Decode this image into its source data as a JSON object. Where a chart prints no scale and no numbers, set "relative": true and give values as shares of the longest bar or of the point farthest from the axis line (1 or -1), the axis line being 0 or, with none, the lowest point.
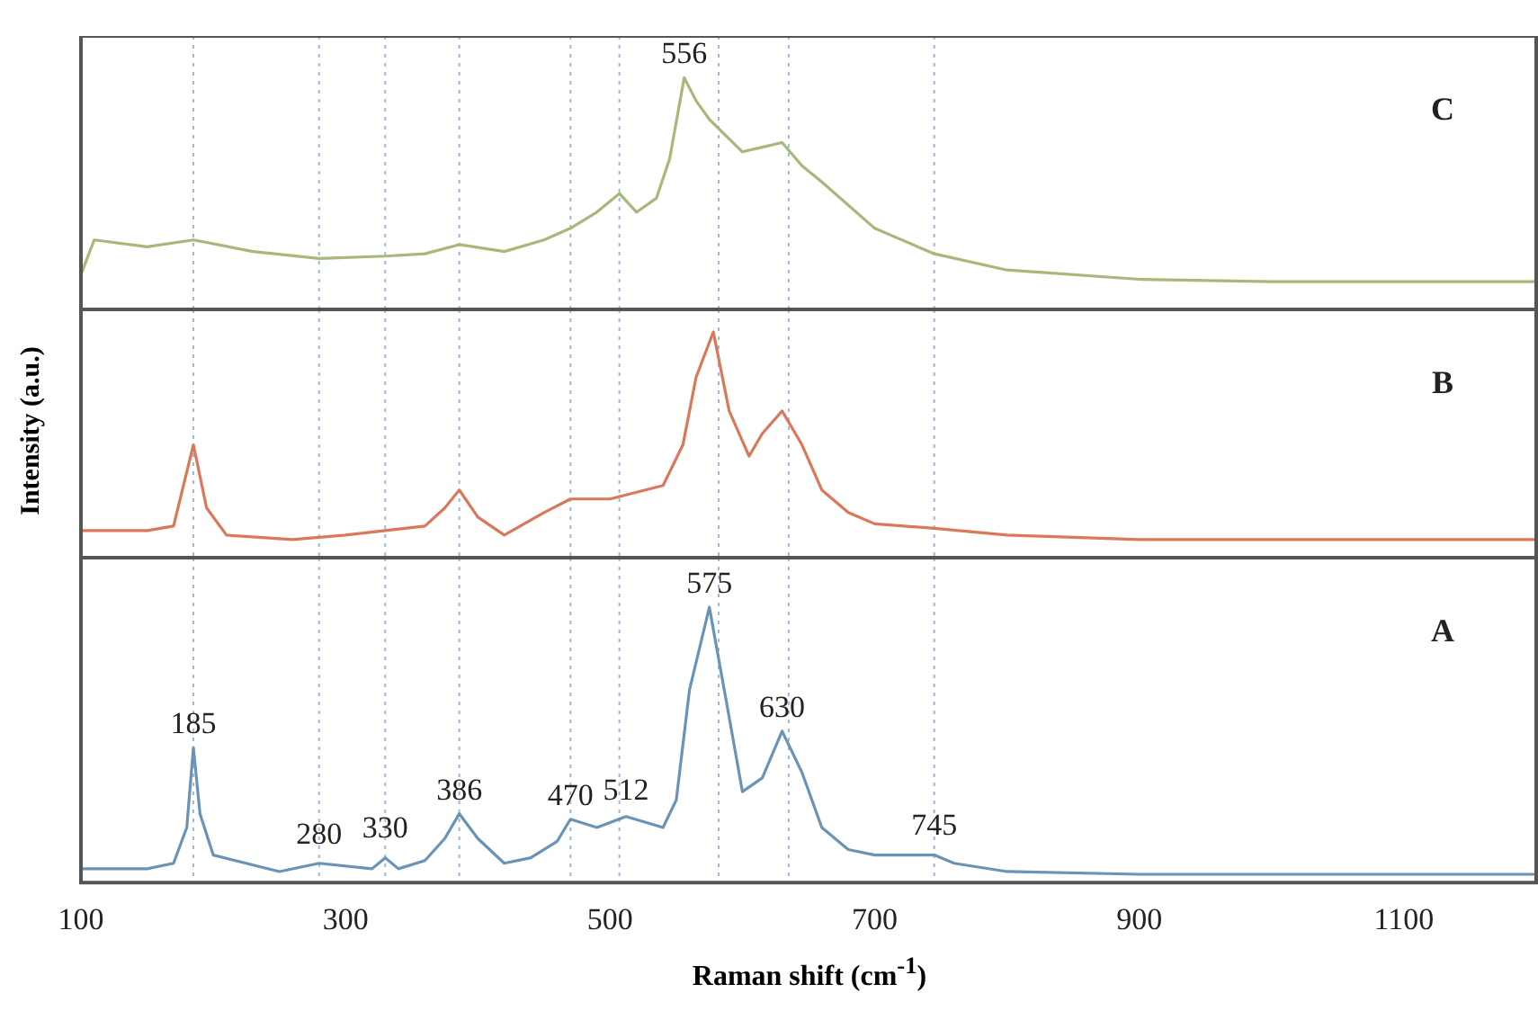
{
  "chart_data": [
    {
      "type": "line",
      "relative": true,
      "xlim": [
        100,
        1200
      ],
      "xticks": [
        100,
        300,
        500,
        700,
        900,
        1100
      ],
      "tick_labels": false,
      "annotations": [
        "C",
        {
          "text": "556",
          "x": 556,
          "y": 1
        }
      ],
      "ref_lines": [
        {
          "axis": "x",
          "value": 185,
          "color": "#9fb9d6",
          "line_style": "dotted"
        },
        {
          "axis": "x",
          "value": 280,
          "color": "#9fb9d6",
          "line_style": "dotted"
        },
        {
          "axis": "x",
          "value": 330,
          "color": "#9fb9d6",
          "line_style": "dotted"
        },
        {
          "axis": "x",
          "value": 386,
          "color": "#9fb9d6",
          "line_style": "dotted"
        },
        {
          "axis": "x",
          "value": 470,
          "color": "#9fb9d6",
          "line_style": "dotted"
        },
        {
          "axis": "x",
          "value": 507,
          "color": "#9fb9d6",
          "line_style": "dotted"
        },
        {
          "axis": "x",
          "value": 582,
          "color": "#9fb9d6",
          "line_style": "dotted"
        },
        {
          "axis": "x",
          "value": 635,
          "color": "#9fb9d6",
          "line_style": "dotted"
        },
        {
          "axis": "x",
          "value": 745,
          "color": "#9fb9d6",
          "line_style": "dotted"
        }
      ],
      "series": [
        {
          "color": "#a8b87a",
          "x": [
            100,
            110,
            150,
            185,
            230,
            280,
            330,
            360,
            386,
            420,
            450,
            470,
            490,
            507,
            520,
            535,
            545,
            556,
            565,
            575,
            600,
            615,
            630,
            645,
            660,
            700,
            745,
            800,
            900,
            1000,
            1100,
            1200
          ],
          "values": [
            0.15,
            0.3,
            0.27,
            0.3,
            0.25,
            0.22,
            0.23,
            0.24,
            0.28,
            0.25,
            0.3,
            0.35,
            0.42,
            0.5,
            0.42,
            0.48,
            0.65,
            1,
            0.9,
            0.82,
            0.68,
            0.7,
            0.72,
            0.62,
            0.55,
            0.35,
            0.24,
            0.17,
            0.13,
            0.12,
            0.12,
            0.12
          ]
        }
      ]
    },
    {
      "type": "line",
      "relative": true,
      "xlim": [
        100,
        1200
      ],
      "xticks": [
        100,
        300,
        500,
        700,
        900,
        1100
      ],
      "tick_labels": false,
      "ylabel": "Intensity (a.u.)",
      "annotations": [
        "B"
      ],
      "ref_lines": [
        {
          "axis": "x",
          "value": 185,
          "color": "#9fb9d6",
          "line_style": "dotted"
        },
        {
          "axis": "x",
          "value": 280,
          "color": "#9fb9d6",
          "line_style": "dotted"
        },
        {
          "axis": "x",
          "value": 330,
          "color": "#9fb9d6",
          "line_style": "dotted"
        },
        {
          "axis": "x",
          "value": 386,
          "color": "#9fb9d6",
          "line_style": "dotted"
        },
        {
          "axis": "x",
          "value": 470,
          "color": "#9fb9d6",
          "line_style": "dotted"
        },
        {
          "axis": "x",
          "value": 507,
          "color": "#9fb9d6",
          "line_style": "dotted"
        },
        {
          "axis": "x",
          "value": 582,
          "color": "#9fb9d6",
          "line_style": "dotted"
        },
        {
          "axis": "x",
          "value": 635,
          "color": "#9fb9d6",
          "line_style": "dotted"
        },
        {
          "axis": "x",
          "value": 745,
          "color": "#9fb9d6",
          "line_style": "dotted"
        }
      ],
      "series": [
        {
          "color": "#d9785a",
          "x": [
            100,
            150,
            170,
            185,
            195,
            210,
            260,
            300,
            360,
            375,
            386,
            400,
            420,
            450,
            470,
            500,
            540,
            555,
            565,
            578,
            590,
            605,
            615,
            630,
            645,
            660,
            680,
            700,
            745,
            800,
            900,
            1000,
            1100,
            1200
          ],
          "values": [
            0.12,
            0.12,
            0.14,
            0.5,
            0.22,
            0.1,
            0.08,
            0.1,
            0.14,
            0.22,
            0.3,
            0.18,
            0.1,
            0.2,
            0.26,
            0.26,
            0.32,
            0.5,
            0.8,
            1,
            0.65,
            0.45,
            0.55,
            0.65,
            0.5,
            0.3,
            0.2,
            0.15,
            0.13,
            0.1,
            0.08,
            0.08,
            0.08,
            0.08
          ]
        }
      ]
    },
    {
      "type": "line",
      "relative": true,
      "xlim": [
        100,
        1200
      ],
      "xticks": [
        100,
        300,
        500,
        700,
        900,
        1100
      ],
      "tick_labels": "x",
      "xlabel": "Raman shift (cm$^{-1}$)",
      "annotations": [
        "A",
        {
          "text": "185",
          "x": 185,
          "y": 0.49
        },
        {
          "text": "280",
          "x": 280,
          "y": 0.09
        },
        {
          "text": "330",
          "x": 330,
          "y": 0.11
        },
        {
          "text": "386",
          "x": 386,
          "y": 0.25
        },
        {
          "text": "470",
          "x": 470,
          "y": 0.23
        },
        {
          "text": "512",
          "x": 512,
          "y": 0.25
        },
        {
          "text": "575",
          "x": 575,
          "y": 1
        },
        {
          "text": "630",
          "x": 630,
          "y": 0.55
        },
        {
          "text": "745",
          "x": 745,
          "y": 0.12
        }
      ],
      "ref_lines": [
        {
          "axis": "x",
          "value": 185,
          "color": "#9fb9d6",
          "line_style": "dotted"
        },
        {
          "axis": "x",
          "value": 280,
          "color": "#9fb9d6",
          "line_style": "dotted"
        },
        {
          "axis": "x",
          "value": 330,
          "color": "#9fb9d6",
          "line_style": "dotted"
        },
        {
          "axis": "x",
          "value": 386,
          "color": "#9fb9d6",
          "line_style": "dotted"
        },
        {
          "axis": "x",
          "value": 470,
          "color": "#9fb9d6",
          "line_style": "dotted"
        },
        {
          "axis": "x",
          "value": 507,
          "color": "#9fb9d6",
          "line_style": "dotted"
        },
        {
          "axis": "x",
          "value": 582,
          "color": "#9fb9d6",
          "line_style": "dotted"
        },
        {
          "axis": "x",
          "value": 635,
          "color": "#9fb9d6",
          "line_style": "dotted"
        },
        {
          "axis": "x",
          "value": 745,
          "color": "#9fb9d6",
          "line_style": "dotted"
        }
      ],
      "series": [
        {
          "color": "#6a93b8",
          "x": [
            100,
            150,
            170,
            180,
            185,
            190,
            200,
            250,
            280,
            320,
            330,
            340,
            360,
            375,
            386,
            400,
            420,
            440,
            460,
            470,
            490,
            512,
            540,
            550,
            560,
            575,
            590,
            600,
            615,
            630,
            645,
            660,
            680,
            700,
            745,
            760,
            800,
            900,
            1000,
            1100,
            1200
          ],
          "values": [
            0.05,
            0.05,
            0.07,
            0.2,
            0.49,
            0.25,
            0.1,
            0.04,
            0.07,
            0.05,
            0.09,
            0.05,
            0.08,
            0.16,
            0.25,
            0.16,
            0.07,
            0.09,
            0.15,
            0.23,
            0.2,
            0.24,
            0.2,
            0.3,
            0.7,
            1,
            0.6,
            0.33,
            0.38,
            0.55,
            0.4,
            0.2,
            0.12,
            0.1,
            0.1,
            0.07,
            0.04,
            0.03,
            0.03,
            0.03,
            0.03
          ]
        }
      ]
    }
  ]
}
